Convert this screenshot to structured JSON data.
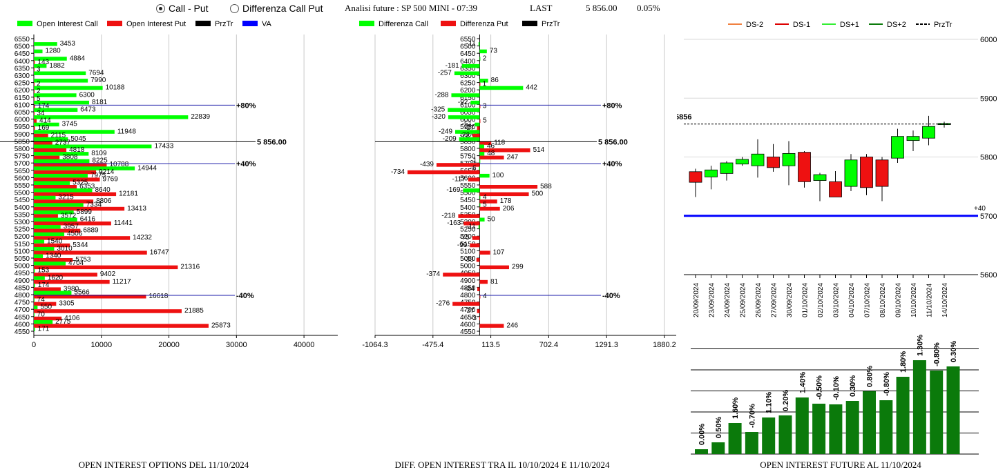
{
  "header": {
    "radio_call_put": "Call - Put",
    "radio_diff": "Differenza Call Put",
    "analysis_label": "Analisi future : SP 500 MINI - 07:39",
    "last_label": "LAST",
    "last_value": "5 856.00",
    "change": "0.05%"
  },
  "colors": {
    "call": "#00ff00",
    "put": "#ee1111",
    "przTr": "#000000",
    "va": "#0000ff",
    "dark_green": "#0b7a0b"
  },
  "chart_data": [
    {
      "type": "bar",
      "title": "OPEN INTEREST OPTIONS DEL 11/10/2024",
      "legend": [
        "Open Interest Call",
        "Open Interest Put",
        "PrzTr",
        "VA"
      ],
      "xlim": [
        0,
        45000
      ],
      "x_ticks": [
        "0",
        "10000",
        "20000",
        "30000",
        "40000"
      ],
      "strikes": [
        6550,
        6500,
        6450,
        6400,
        6350,
        6300,
        6250,
        6200,
        6150,
        6100,
        6050,
        6000,
        5950,
        5900,
        5850,
        5800,
        5750,
        5700,
        5650,
        5600,
        5550,
        5500,
        5450,
        5400,
        5350,
        5300,
        5250,
        5200,
        5150,
        5100,
        5050,
        5000,
        4950,
        4900,
        4850,
        4800,
        4750,
        4700,
        4650,
        4600,
        4550
      ],
      "call": [
        null,
        3453,
        1280,
        4884,
        1882,
        7694,
        7990,
        10188,
        6300,
        8181,
        6473,
        22839,
        3745,
        11948,
        5045,
        17433,
        8109,
        8225,
        14944,
        7975,
        5325,
        8640,
        3215,
        7334,
        5899,
        6416,
        3957,
        4506,
        1540,
        3010,
        1340,
        4704,
        153,
        1620,
        174,
        5566,
        74,
        550,
        70,
        2775,
        171
      ],
      "put": [
        null,
        null,
        null,
        143,
        3,
        null,
        2,
        2,
        5,
        174,
        34,
        414,
        169,
        2115,
        2737,
        4818,
        3808,
        10788,
        9214,
        9769,
        6353,
        12181,
        8806,
        13413,
        3572,
        11441,
        6889,
        14232,
        5344,
        16747,
        5753,
        21316,
        9402,
        11217,
        3980,
        16618,
        3305,
        21885,
        4106,
        25873,
        null
      ],
      "prz_tr": {
        "strike": 5850,
        "label": "5 856.00"
      },
      "levels": [
        {
          "strike": 6100,
          "label": "+80%"
        },
        {
          "strike": 5700,
          "label": "+40%"
        },
        {
          "strike": 4800,
          "label": "-40%"
        }
      ]
    },
    {
      "type": "bar",
      "title": "DIFF. OPEN INTEREST TRA IL 10/10/2024 E 11/10/2024",
      "legend": [
        "Differenza Call",
        "Differenza Put",
        "PrzTr"
      ],
      "xlim": [
        -1064.3,
        2000
      ],
      "x_ticks": [
        "-1064.3",
        "-475.4",
        "113.5",
        "702.4",
        "1291.3",
        "1880.2"
      ],
      "strikes": [
        6550,
        6500,
        6450,
        6400,
        6350,
        6300,
        6250,
        6200,
        6150,
        6100,
        6050,
        6000,
        5950,
        5900,
        5850,
        5800,
        5750,
        5700,
        5650,
        5600,
        5550,
        5500,
        5450,
        5400,
        5350,
        5300,
        5250,
        5200,
        5150,
        5100,
        5050,
        5000,
        4950,
        4900,
        4850,
        4800,
        4750,
        4700,
        4650,
        4600,
        4550
      ],
      "call": [
        null,
        -11,
        73,
        2,
        -181,
        -257,
        86,
        442,
        -288,
        -92,
        -325,
        -320,
        -51,
        -249,
        -209,
        46,
        48,
        -1,
        -6,
        100,
        null,
        -169,
        4,
        5,
        null,
        50,
        -11,
        null,
        null,
        null,
        null,
        null,
        null,
        null,
        null,
        null,
        null,
        null,
        null,
        null,
        null
      ],
      "put": [
        null,
        null,
        null,
        null,
        null,
        null,
        1,
        null,
        null,
        3,
        null,
        5,
        -27,
        -72,
        118,
        514,
        247,
        -439,
        -734,
        -117,
        588,
        500,
        178,
        206,
        -218,
        -163,
        null,
        -75,
        -99,
        107,
        -33,
        299,
        -374,
        81,
        -24,
        4,
        -276,
        -27,
        -3,
        246,
        null
      ],
      "prz_tr": {
        "strike": 5850,
        "label": "5 856.00"
      },
      "levels": [
        {
          "strike": 6100,
          "label": "+80%"
        },
        {
          "strike": 5700,
          "label": "+40%"
        },
        {
          "strike": 4800,
          "label": "-40%"
        }
      ]
    },
    {
      "type": "candlestick",
      "legend": [
        "DS-2",
        "DS-1",
        "DS+1",
        "DS+2",
        "PrzTr"
      ],
      "ylim": [
        5600,
        6000
      ],
      "y_ticks": [
        "6000",
        "5900",
        "5800",
        "5700",
        "5600"
      ],
      "dates": [
        "20/09/2024",
        "23/09/2024",
        "24/09/2024",
        "25/09/2024",
        "26/09/2024",
        "27/09/2024",
        "30/09/2024",
        "01/10/2024",
        "02/10/2024",
        "03/10/2024",
        "04/10/2024",
        "07/10/2024",
        "08/10/2024",
        "09/10/2024",
        "10/10/2024",
        "11/10/2024",
        "14/10/2024"
      ],
      "open": [
        5775,
        5766,
        5772,
        5788,
        5785,
        5800,
        5785,
        5808,
        5760,
        5758,
        5750,
        5800,
        5795,
        5798,
        5828,
        5832,
        5855
      ],
      "close": [
        5757,
        5778,
        5790,
        5796,
        5805,
        5782,
        5806,
        5758,
        5770,
        5732,
        5795,
        5748,
        5750,
        5835,
        5835,
        5852,
        5857
      ],
      "high": [
        5780,
        5785,
        5793,
        5800,
        5830,
        5822,
        5827,
        5810,
        5773,
        5776,
        5805,
        5805,
        5800,
        5848,
        5845,
        5870,
        5860
      ],
      "low": [
        5732,
        5745,
        5760,
        5785,
        5765,
        5775,
        5752,
        5748,
        5725,
        5735,
        5742,
        5735,
        5725,
        5790,
        5810,
        5820,
        5850
      ],
      "prz_tr": {
        "value": 5856,
        "label": "5856"
      },
      "va_line": {
        "value": 5700,
        "label": "+40"
      }
    },
    {
      "type": "bar",
      "title": "OPEN INTEREST FUTURE AL 11/10/2024",
      "labels": [
        "0.00%",
        "0.50%",
        "1.60%",
        "-0.70%",
        "1.10%",
        "0.20%",
        "1.40%",
        "-0.50%",
        "-0.10%",
        "0.30%",
        "0.80%",
        "-0.80%",
        "1.80%",
        "1.30%",
        "-0.80%",
        "0.30%"
      ],
      "values": [
        7,
        17,
        45,
        32,
        53,
        56,
        82,
        73,
        72,
        77,
        91,
        78,
        112,
        136,
        121,
        127
      ]
    }
  ]
}
